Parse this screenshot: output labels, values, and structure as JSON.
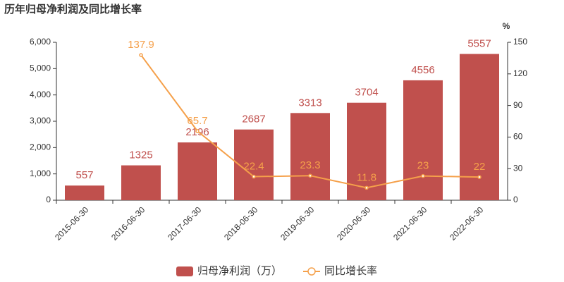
{
  "chart_data": {
    "type": "bar",
    "title": "历年归母净利润及同比增长率",
    "categories": [
      "2015-06-30",
      "2016-06-30",
      "2017-06-30",
      "2018-06-30",
      "2019-06-30",
      "2020-06-30",
      "2021-06-30",
      "2022-06-30"
    ],
    "series": [
      {
        "name": "归母净利润（万）",
        "type": "bar",
        "color": "#c0504d",
        "values": [
          557,
          1325,
          2196,
          2687,
          3313,
          3704,
          4556,
          5557
        ]
      },
      {
        "name": "同比增长率",
        "type": "line",
        "axis": "y2",
        "color": "#f5a04a",
        "values": [
          null,
          137.9,
          65.7,
          22.4,
          23.3,
          11.8,
          23,
          22
        ]
      }
    ],
    "ylim": [
      0,
      6000
    ],
    "yticks": [
      0,
      {
        "value": 1000,
        "label": "1,000"
      },
      {
        "value": 2000,
        "label": "2,000"
      },
      {
        "value": 3000,
        "label": "3,000"
      },
      {
        "value": 4000,
        "label": "4,000"
      },
      {
        "value": 5000,
        "label": "5,000"
      },
      {
        "value": 6000,
        "label": "6,000"
      }
    ],
    "y2label": "%",
    "y2lim": [
      0,
      150
    ],
    "y2ticks": [
      0,
      30,
      60,
      90,
      120,
      150
    ],
    "grid": false,
    "legend": "bottom"
  }
}
